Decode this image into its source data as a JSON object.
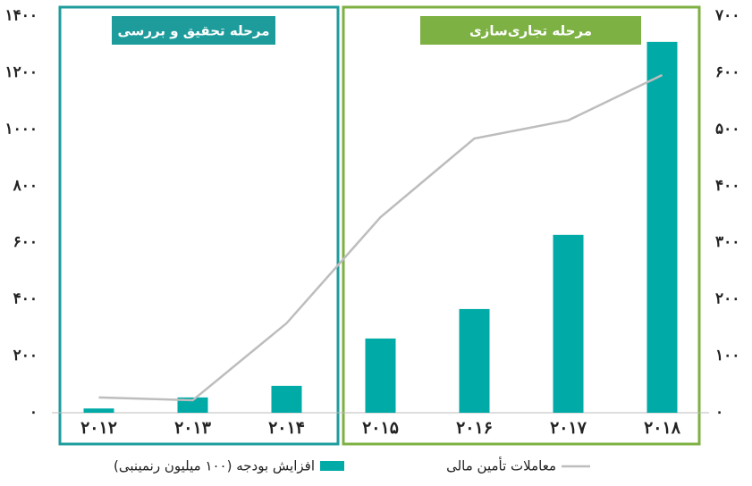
{
  "chart_data": {
    "type": "bar_line",
    "categories": [
      "۲۰۱۲",
      "۲۰۱۳",
      "۲۰۱۴",
      "۲۰۱۵",
      "۲۰۱۶",
      "۲۰۱۷",
      "۲۰۱۸"
    ],
    "series": [
      {
        "name": "افزایش بودجه (۱۰۰ میلیون رنمینبی)",
        "color": "#00aaa7",
        "type": "bar",
        "values": [
          15,
          54,
          95,
          262,
          366,
          628,
          1309
        ]
      },
      {
        "name": "معاملات تأمین مالی",
        "color": "#bdbdbd",
        "type": "line",
        "axis": "y2",
        "values": [
          27,
          22,
          158,
          345,
          484,
          516,
          596
        ]
      }
    ],
    "ylim": [
      0,
      1400
    ],
    "yticks": [
      {
        "value": 0,
        "label": "۰"
      },
      {
        "value": 200,
        "label": "۲۰۰"
      },
      {
        "value": 400,
        "label": "۴۰۰"
      },
      {
        "value": 600,
        "label": "۶۰۰"
      },
      {
        "value": 800,
        "label": "۸۰۰"
      },
      {
        "value": 1000,
        "label": "۱۰۰۰"
      },
      {
        "value": 1200,
        "label": "۱۲۰۰"
      },
      {
        "value": 1400,
        "label": "۱۴۰۰"
      }
    ],
    "y2lim": [
      0,
      700
    ],
    "y2ticks": [
      {
        "value": 0,
        "label": "۰"
      },
      {
        "value": 100,
        "label": "۱۰۰"
      },
      {
        "value": 200,
        "label": "۲۰۰"
      },
      {
        "value": 300,
        "label": "۳۰۰"
      },
      {
        "value": 400,
        "label": "۴۰۰"
      },
      {
        "value": 500,
        "label": "۵۰۰"
      },
      {
        "value": 600,
        "label": "۶۰۰"
      },
      {
        "value": 700,
        "label": "۷۰۰"
      }
    ],
    "phases": [
      {
        "label": "مرحله تحقیق و بررسی",
        "color": "#1e9c9c"
      },
      {
        "label": "مرحله تجاری‌سازی",
        "color": "#7db143"
      }
    ]
  }
}
